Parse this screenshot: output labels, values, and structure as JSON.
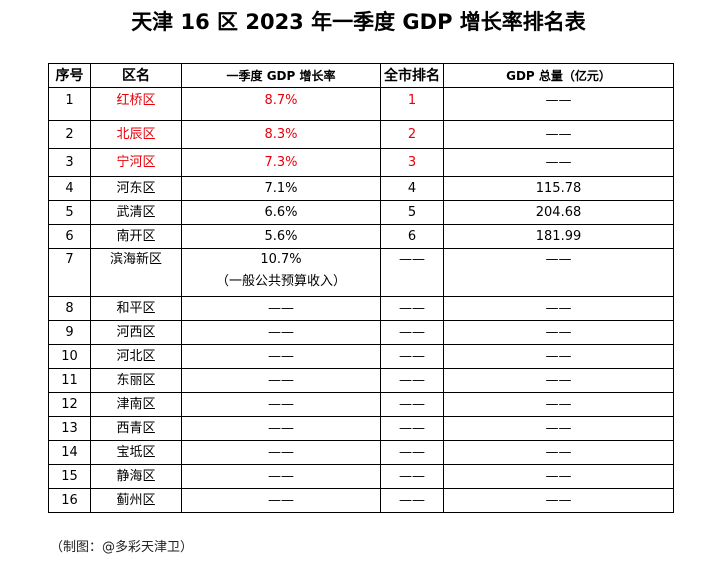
{
  "title": "天津 16 区 2023 年一季度 GDP 增长率排名表",
  "table": {
    "headers": [
      "序号",
      "区名",
      "一季度 GDP 增长率",
      "全市排名",
      "GDP 总量（亿元）"
    ],
    "rows": [
      {
        "no": "1",
        "district": "红桥区",
        "growth": "8.7%",
        "growth_note": "",
        "rank": "1",
        "gdp": "——",
        "highlight": true
      },
      {
        "no": "2",
        "district": "北辰区",
        "growth": "8.3%",
        "growth_note": "",
        "rank": "2",
        "gdp": "——",
        "highlight": true
      },
      {
        "no": "3",
        "district": "宁河区",
        "growth": "7.3%",
        "growth_note": "",
        "rank": "3",
        "gdp": "——",
        "highlight": true
      },
      {
        "no": "4",
        "district": "河东区",
        "growth": "7.1%",
        "growth_note": "",
        "rank": "4",
        "gdp": "115.78",
        "highlight": false
      },
      {
        "no": "5",
        "district": "武清区",
        "growth": "6.6%",
        "growth_note": "",
        "rank": "5",
        "gdp": "204.68",
        "highlight": false
      },
      {
        "no": "6",
        "district": "南开区",
        "growth": "5.6%",
        "growth_note": "",
        "rank": "6",
        "gdp": "181.99",
        "highlight": false
      },
      {
        "no": "7",
        "district": "滨海新区",
        "growth": "10.7%",
        "growth_note": "（一般公共预算收入）",
        "rank": "——",
        "gdp": "——",
        "highlight": false
      },
      {
        "no": "8",
        "district": "和平区",
        "growth": "——",
        "growth_note": "",
        "rank": "——",
        "gdp": "——",
        "highlight": false
      },
      {
        "no": "9",
        "district": "河西区",
        "growth": "——",
        "growth_note": "",
        "rank": "——",
        "gdp": "——",
        "highlight": false
      },
      {
        "no": "10",
        "district": "河北区",
        "growth": "——",
        "growth_note": "",
        "rank": "——",
        "gdp": "——",
        "highlight": false
      },
      {
        "no": "11",
        "district": "东丽区",
        "growth": "——",
        "growth_note": "",
        "rank": "——",
        "gdp": "——",
        "highlight": false
      },
      {
        "no": "12",
        "district": "津南区",
        "growth": "——",
        "growth_note": "",
        "rank": "——",
        "gdp": "——",
        "highlight": false
      },
      {
        "no": "13",
        "district": "西青区",
        "growth": "——",
        "growth_note": "",
        "rank": "——",
        "gdp": "——",
        "highlight": false
      },
      {
        "no": "14",
        "district": "宝坻区",
        "growth": "——",
        "growth_note": "",
        "rank": "——",
        "gdp": "——",
        "highlight": false
      },
      {
        "no": "15",
        "district": "静海区",
        "growth": "——",
        "growth_note": "",
        "rank": "——",
        "gdp": "——",
        "highlight": false
      },
      {
        "no": "16",
        "district": "蓟州区",
        "growth": "——",
        "growth_note": "",
        "rank": "——",
        "gdp": "——",
        "highlight": false
      }
    ]
  },
  "footer": "（制图：@多彩天津卫）",
  "colors": {
    "highlight": "#e8000b",
    "text": "#000000",
    "border": "#000000"
  }
}
